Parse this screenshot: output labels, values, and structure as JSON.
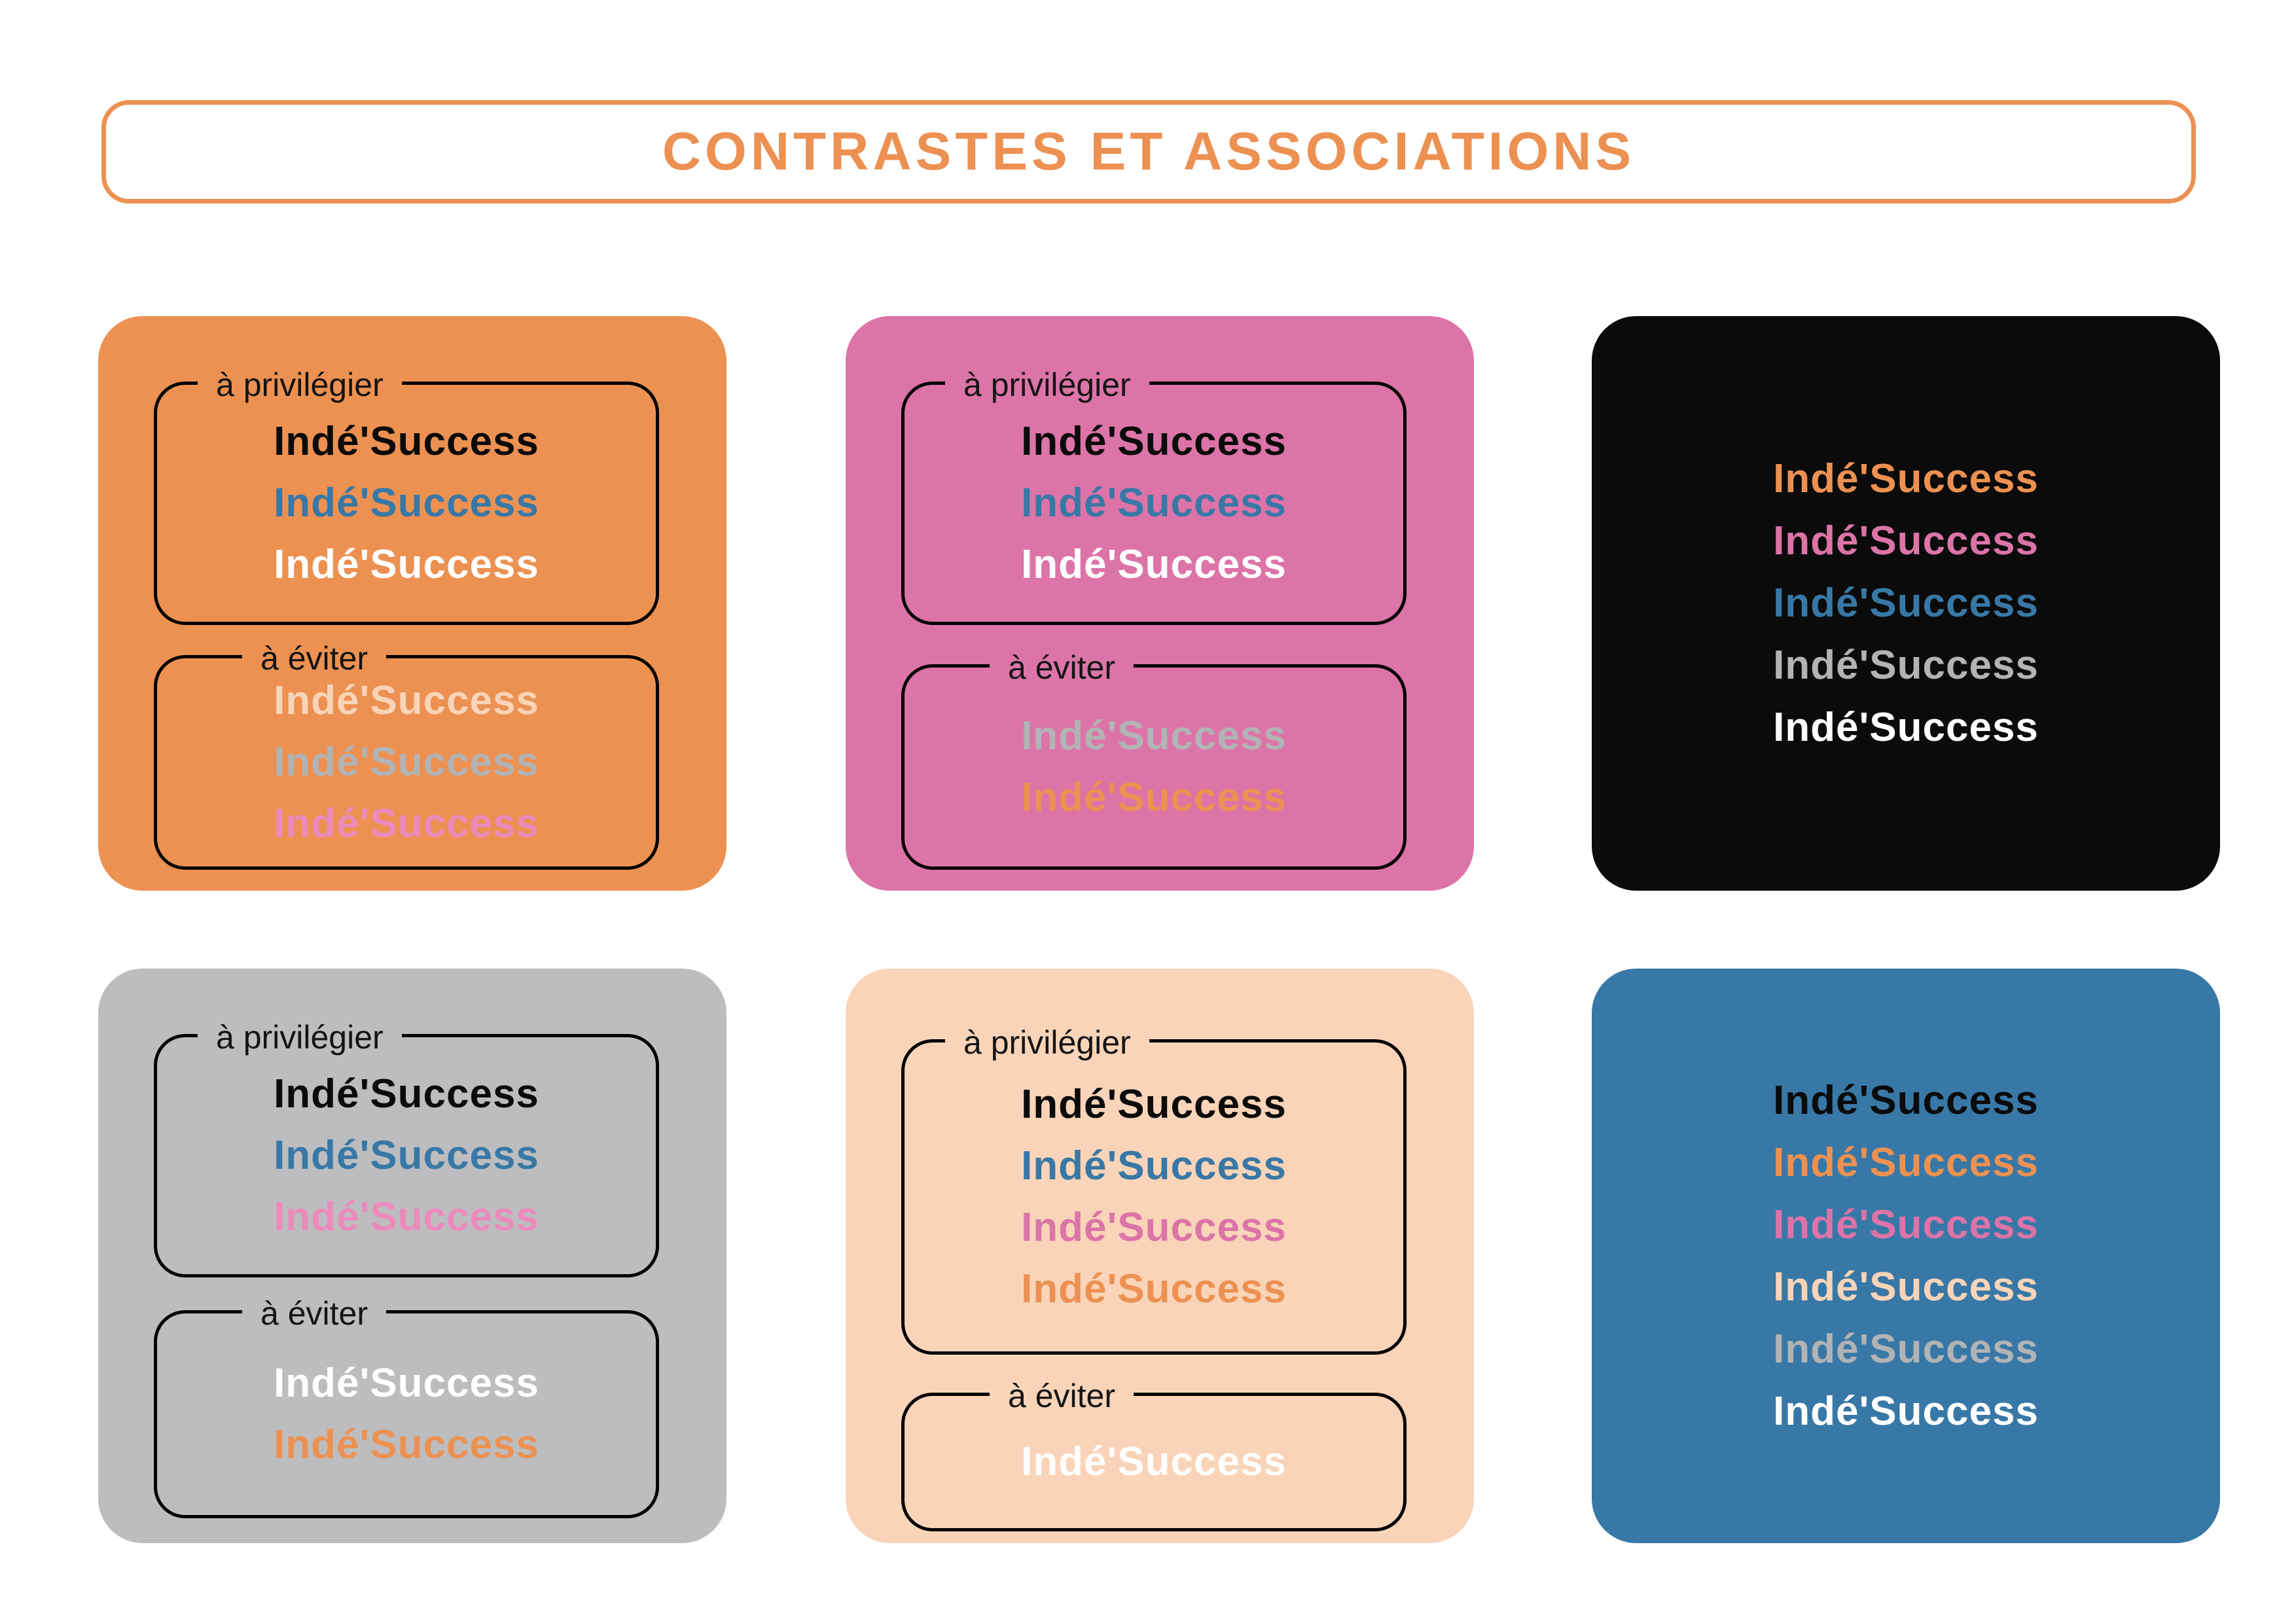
{
  "title": {
    "text": "CONTRASTES ET ASSOCIATIONS"
  },
  "brand": {
    "logo_text": "Indé'Success"
  },
  "labels": {
    "prefer": "à privilégier",
    "avoid": "à éviter"
  },
  "palette": {
    "black": "#0B0B0B",
    "white": "#FFFFFF",
    "orange": "#EC9152",
    "pink": "#DC74A8",
    "pink_light": "#EC8ABC",
    "blue": "#3878A6",
    "peach": "#F9D4B8",
    "gray": "#B2B3B5"
  },
  "cards": [
    {
      "name": "orange-background-card",
      "bg": "#EC9152",
      "sections": [
        {
          "label": "à privilégier",
          "lines": [
            "black",
            "blue",
            "white"
          ]
        },
        {
          "label": "à éviter",
          "lines": [
            "peach",
            "gray",
            "pink_light"
          ]
        }
      ]
    },
    {
      "name": "pink-background-card",
      "bg": "#DC74A8",
      "sections": [
        {
          "label": "à privilégier",
          "lines": [
            "black",
            "blue",
            "white"
          ]
        },
        {
          "label": "à éviter",
          "lines": [
            "gray",
            "orange"
          ]
        }
      ]
    },
    {
      "name": "black-background-card",
      "bg": "#0B0B0B",
      "lines": [
        "orange",
        "pink",
        "blue",
        "gray",
        "white"
      ]
    },
    {
      "name": "gray-background-card",
      "bg": "#BDBDBF",
      "sections": [
        {
          "label": "à privilégier",
          "lines": [
            "black",
            "blue",
            "pink_light"
          ]
        },
        {
          "label": "à éviter",
          "lines": [
            "white",
            "orange"
          ]
        }
      ]
    },
    {
      "name": "peach-background-card",
      "bg": "#F9D4B8",
      "sections": [
        {
          "label": "à privilégier",
          "lines": [
            "black",
            "blue",
            "pink",
            "orange"
          ]
        },
        {
          "label": "à éviter",
          "lines": [
            "white"
          ]
        }
      ]
    },
    {
      "name": "blue-background-card",
      "bg": "#3878A6",
      "lines": [
        "black",
        "orange",
        "pink",
        "peach",
        "gray",
        "white"
      ]
    }
  ]
}
